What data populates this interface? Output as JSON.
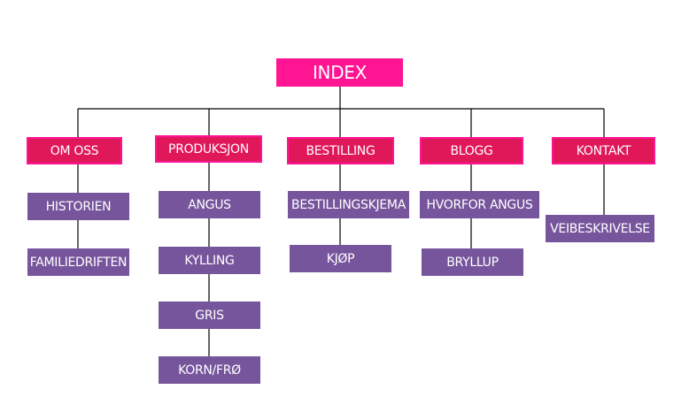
{
  "colors": {
    "index": "#ff1493",
    "category": "#e0185a",
    "category_border": "#ff1493",
    "sub": "#76559c",
    "line": "#000000"
  },
  "root": {
    "label": "INDEX"
  },
  "categories": [
    {
      "label": "OM OSS",
      "children": [
        "HISTORIEN",
        "FAMILIEDRIFTEN"
      ]
    },
    {
      "label": "PRODUKSJON",
      "children": [
        "ANGUS",
        "KYLLING",
        "GRIS",
        "KORN/FRØ"
      ]
    },
    {
      "label": "BESTILLING",
      "children": [
        "BESTILLINGSKJEMA",
        "KJØP"
      ]
    },
    {
      "label": "BLOGG",
      "children": [
        "HVORFOR ANGUS",
        "BRYLLUP"
      ]
    },
    {
      "label": "KONTAKT",
      "children": [
        "VEIBESKRIVELSE"
      ]
    }
  ]
}
